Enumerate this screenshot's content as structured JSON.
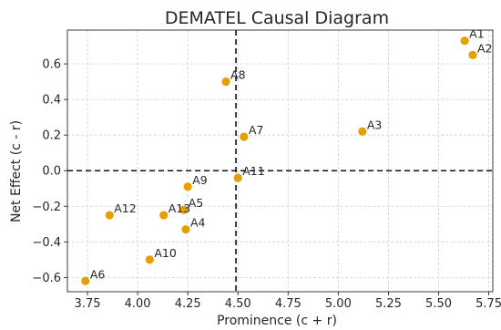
{
  "chart_data": {
    "type": "scatter",
    "title": "DEMATEL Causal Diagram",
    "xlabel": "Prominence (c + r)",
    "ylabel": "Net Effect (c - r)",
    "xlim": [
      3.65,
      5.77
    ],
    "ylim": [
      -0.68,
      0.79
    ],
    "x_ticks": [
      "3.75",
      "4.00",
      "4.25",
      "4.50",
      "4.75",
      "5.00",
      "5.25",
      "5.50",
      "5.75"
    ],
    "y_ticks": [
      "−0.6",
      "−0.4",
      "−0.2",
      "0.0",
      "0.2",
      "0.4",
      "0.6"
    ],
    "grid": true,
    "reference_lines": {
      "x": 4.49,
      "y": 0.0
    },
    "point_color": "#e69f00",
    "points": [
      {
        "label": "A1",
        "x": 5.63,
        "y": 0.73
      },
      {
        "label": "A2",
        "x": 5.67,
        "y": 0.65
      },
      {
        "label": "A3",
        "x": 5.12,
        "y": 0.22
      },
      {
        "label": "A4",
        "x": 4.24,
        "y": -0.33
      },
      {
        "label": "A5",
        "x": 4.23,
        "y": -0.22
      },
      {
        "label": "A6",
        "x": 3.74,
        "y": -0.62
      },
      {
        "label": "A7",
        "x": 4.53,
        "y": 0.19
      },
      {
        "label": "A8",
        "x": 4.44,
        "y": 0.5
      },
      {
        "label": "A9",
        "x": 4.25,
        "y": -0.09
      },
      {
        "label": "A10",
        "x": 4.06,
        "y": -0.5
      },
      {
        "label": "A11",
        "x": 4.5,
        "y": -0.04
      },
      {
        "label": "A12",
        "x": 3.86,
        "y": -0.25
      },
      {
        "label": "A13",
        "x": 4.13,
        "y": -0.25
      }
    ]
  }
}
